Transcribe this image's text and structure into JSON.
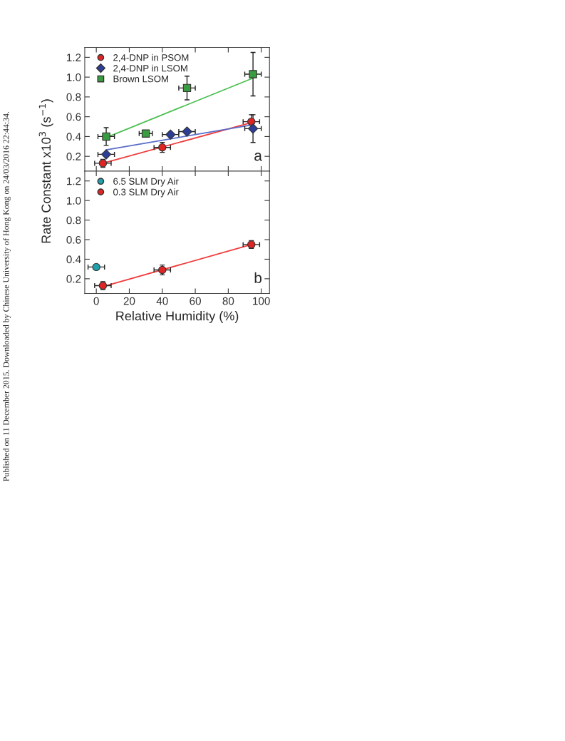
{
  "chart_data": [
    {
      "type": "scatter",
      "ylabel": "Rate Constant x10$^{3}$ (s$^{−1}$)",
      "annotations": [
        "a",
        "Published on 11 December 2015. Downloaded by Chinese University of Hong Kong on 24/03/2016 22:44:34."
      ],
      "xlim": [
        -7,
        105
      ],
      "ylim": [
        0.05,
        1.3
      ],
      "xticks": [
        0,
        20,
        40,
        60,
        80,
        100
      ],
      "yticks": [
        0.2,
        0.4,
        0.6,
        0.8,
        {
          "value": 1,
          "label": "1.0"
        },
        1.2
      ],
      "tick_labels": "y",
      "legend": "top left",
      "grid": false,
      "series": [
        {
          "name": "2,4-DNP in PSOM",
          "marker": "circle",
          "color": "#e02424",
          "x": [
            4,
            40,
            94
          ],
          "values": [
            0.13,
            0.29,
            0.55
          ],
          "errors": [
            0.04,
            0.05,
            0.07
          ],
          "xerrors": [
            5,
            5,
            5
          ]
        },
        {
          "name": "2,4-DNP in LSOM",
          "marker": "diamond",
          "color": "#2c3e96",
          "x": [
            6,
            45,
            55,
            95
          ],
          "values": [
            0.22,
            0.42,
            0.45,
            0.48
          ],
          "errors": [
            null,
            null,
            null,
            0.14
          ],
          "xerrors": [
            5,
            5,
            5,
            5
          ]
        },
        {
          "name": "Brown LSOM",
          "marker": "square",
          "color": "#3a9c40",
          "x": [
            6,
            30,
            55,
            95
          ],
          "values": [
            0.4,
            0.43,
            0.89,
            1.03
          ],
          "errors": [
            0.09,
            null,
            0.12,
            0.22
          ],
          "xerrors": [
            5,
            4,
            5,
            5
          ]
        },
        {
          "type": "line",
          "color": "#f03c3c",
          "x": [
            4,
            94
          ],
          "values": [
            0.13,
            0.54
          ]
        },
        {
          "type": "line",
          "color": "#5a6cc8",
          "x": [
            6,
            95
          ],
          "values": [
            0.265,
            0.52
          ]
        },
        {
          "type": "line",
          "color": "#4cc050",
          "x": [
            6,
            95
          ],
          "values": [
            0.39,
            0.99
          ]
        }
      ]
    },
    {
      "type": "scatter",
      "xlabel": "Relative Humidity (%)",
      "annotations": [
        "b"
      ],
      "xlim": [
        -7,
        105
      ],
      "ylim": [
        0.05,
        1.3
      ],
      "xticks": [
        0,
        20,
        40,
        60,
        80,
        100
      ],
      "yticks": [
        0.2,
        0.4,
        0.6,
        0.8,
        {
          "value": 1,
          "label": "1.0"
        },
        1.2
      ],
      "legend": "top left",
      "grid": false,
      "series": [
        {
          "name": "6.5 SLM Dry Air",
          "marker": "circle",
          "color": "#20a0a8",
          "x": [
            0
          ],
          "values": [
            0.32
          ],
          "errors": [
            null
          ],
          "xerrors": [
            5
          ]
        },
        {
          "name": "0.3 SLM Dry Air",
          "marker": "circle",
          "color": "#e02424",
          "x": [
            4,
            40,
            94
          ],
          "values": [
            0.13,
            0.29,
            0.55
          ],
          "errors": [
            0.04,
            0.05,
            0.04
          ],
          "xerrors": [
            5,
            5,
            5
          ]
        },
        {
          "type": "line",
          "color": "#f03c3c",
          "x": [
            4,
            94
          ],
          "values": [
            0.12,
            0.55
          ]
        }
      ]
    }
  ]
}
